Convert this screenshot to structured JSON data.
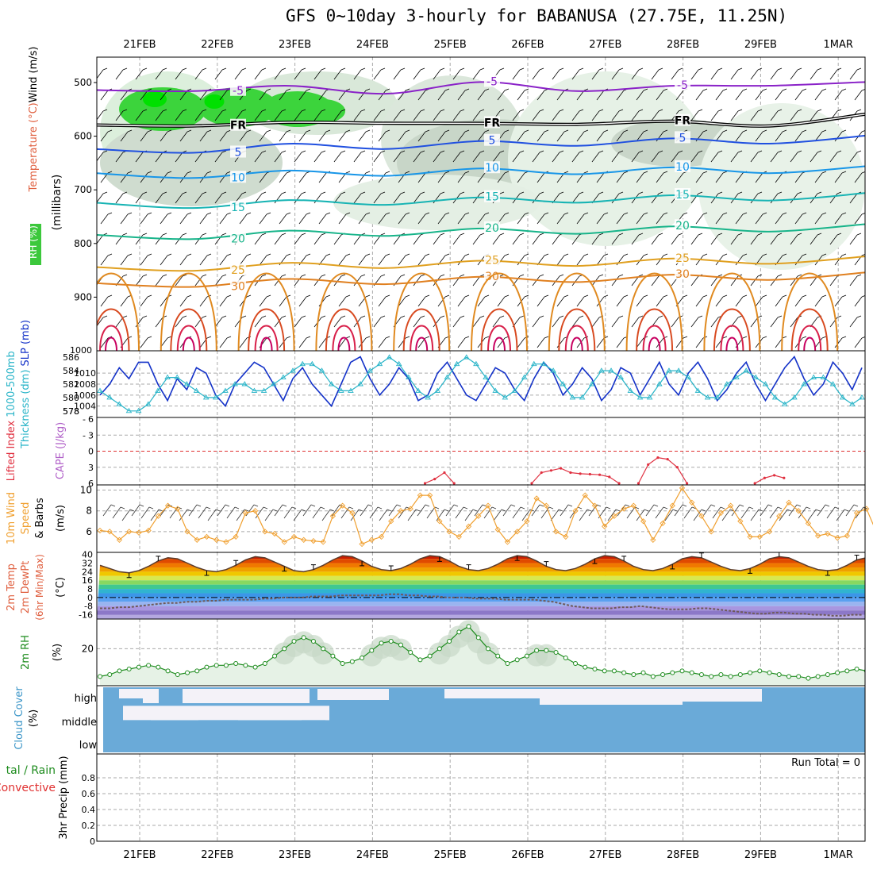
{
  "title": "GFS 0~10day 3-hourly for BABANUSA (27.75E, 11.25N)",
  "date_labels": [
    "21FEB",
    "22FEB",
    "23FEB",
    "24FEB",
    "25FEB",
    "26FEB",
    "27FEB",
    "28FEB",
    "29FEB",
    "1MAR"
  ],
  "panel_labels": {
    "upper_rh": "RH (%)",
    "upper_temp": "Temperature",
    "upper_temp_unit": "(°C)",
    "upper_wind": "Wind (m/s)",
    "upper_units": "(millibars)",
    "thick_a": "1000-500mb",
    "thick_b": "Thickness (dm)",
    "slp": "SLP (mb)",
    "li": "Lifted Index",
    "cape": "CAPE (J/kg)",
    "wind_a": "10m Wind",
    "wind_b": "Speed",
    "wind_c": "& Barbs",
    "wind_unit": "(m/s)",
    "temp_a": "2m Temp",
    "temp_b": "2m DewPt",
    "temp_c": "(6hr Min/Max)",
    "temp_unit": "(°C)",
    "rh_a": "2m RH",
    "rh_unit": "(%)",
    "cloud_a": "Cloud Cover",
    "cloud_unit": "(%)",
    "cloud_high": "high",
    "cloud_middle": "middle",
    "cloud_low": "low",
    "precip_a": "tal / Rain",
    "precip_b": "Convective",
    "precip_c": "3hr Precip (mm)",
    "run_total": "Run Total = 0"
  },
  "chart_data": [
    {
      "type": "heatmap",
      "name": "upper-air cross section",
      "y_ticks": [
        500,
        600,
        700,
        800,
        900
      ],
      "y_top_label": "1000",
      "isotherms": [
        {
          "label": "-5",
          "values_mb": [
            520,
            510,
            512,
            515,
            505,
            510,
            512,
            500,
            505
          ]
        },
        {
          "label": "FR",
          "values_mb": [
            585,
            575,
            580,
            570,
            582,
            572,
            578,
            575,
            565
          ]
        },
        {
          "label": "5",
          "values_mb": [
            630,
            625,
            620,
            618,
            615,
            612,
            610,
            608,
            605
          ]
        },
        {
          "label": "10",
          "values_mb": [
            675,
            672,
            670,
            668,
            666,
            665,
            664,
            663,
            662
          ]
        },
        {
          "label": "15",
          "values_mb": [
            730,
            728,
            725,
            722,
            720,
            718,
            716,
            714,
            712
          ]
        },
        {
          "label": "20",
          "values_mb": [
            790,
            786,
            782,
            780,
            778,
            776,
            774,
            772,
            770
          ]
        },
        {
          "label": "25",
          "values_mb": [
            850,
            845,
            842,
            840,
            838,
            836,
            834,
            832,
            830
          ]
        },
        {
          "label": "30",
          "values_mb": [
            880,
            875,
            872,
            870,
            868,
            866,
            864,
            862,
            860
          ]
        }
      ]
    },
    {
      "type": "line",
      "name": "thickness and SLP",
      "y_ticks_left": [
        578,
        580,
        582,
        584,
        586
      ],
      "y_ticks_right": [
        1004,
        1006,
        1008,
        1010
      ],
      "slp": [
        1006,
        1008,
        1011,
        1009,
        1012,
        1012,
        1008,
        1005,
        1009,
        1007,
        1011,
        1010,
        1006,
        1004,
        1008,
        1010,
        1012,
        1011,
        1008,
        1005,
        1009,
        1011,
        1008,
        1006,
        1004,
        1008,
        1012,
        1013,
        1009,
        1006,
        1008,
        1011,
        1009,
        1005,
        1006,
        1010,
        1012,
        1009,
        1006,
        1005,
        1008,
        1011,
        1010,
        1007,
        1005,
        1009,
        1012,
        1010,
        1006,
        1008,
        1011,
        1009,
        1005,
        1007,
        1011,
        1010,
        1006,
        1009,
        1012,
        1008,
        1006,
        1010,
        1012,
        1009,
        1005,
        1007,
        1010,
        1012,
        1008,
        1005,
        1008,
        1011,
        1013,
        1009,
        1006,
        1008,
        1012,
        1010,
        1007,
        1011
      ],
      "thickness": [
        581,
        580,
        579,
        578,
        578,
        579,
        581,
        583,
        583,
        582,
        581,
        580,
        580,
        581,
        582,
        582,
        581,
        581,
        582,
        583,
        584,
        585,
        585,
        584,
        582,
        581,
        581,
        582,
        584,
        585,
        586,
        585,
        583,
        581,
        580,
        581,
        583,
        585,
        586,
        585,
        583,
        581,
        580,
        581,
        583,
        585,
        585,
        584,
        582,
        580,
        580,
        582,
        584,
        584,
        583,
        581,
        580,
        580,
        582,
        584,
        584,
        583,
        581,
        580,
        580,
        582,
        583,
        584,
        583,
        582,
        580,
        579,
        580,
        582,
        583,
        583,
        582,
        580,
        579,
        580
      ]
    },
    {
      "type": "line",
      "name": "lifted index and CAPE",
      "y_ticks": [
        -3,
        0,
        3,
        6
      ],
      "extra_ticks": [
        "6",
        "3",
        "0",
        "3",
        "6"
      ],
      "zero_line": 0,
      "lifted_index_segments": [
        {
          "x_start": 29,
          "values": [
            6.0,
            5.2,
            4.0,
            6.0
          ]
        },
        {
          "x_start": 40,
          "values": [
            6.0,
            4.0,
            3.6,
            3.2,
            4.0,
            4.2,
            4.3,
            4.4,
            4.8,
            6.0
          ]
        },
        {
          "x_start": 51,
          "values": [
            6.0,
            2.5,
            1.2,
            1.5,
            3.0,
            6.0
          ]
        },
        {
          "x_start": 63,
          "values": [
            6.0,
            5.0,
            4.5,
            5.0
          ]
        }
      ]
    },
    {
      "type": "line",
      "name": "10m wind speed",
      "y_ticks": [
        6,
        8,
        10
      ],
      "ylim": [
        4,
        10.5
      ],
      "values": [
        6.1,
        6.0,
        5.2,
        6.0,
        5.9,
        6.1,
        7.5,
        8.5,
        8.2,
        6.0,
        5.2,
        5.5,
        5.2,
        5.0,
        5.5,
        7.8,
        8.0,
        6.0,
        5.8,
        5.0,
        5.5,
        5.2,
        5.1,
        5.0,
        7.5,
        8.5,
        7.8,
        4.8,
        5.2,
        5.5,
        7.0,
        8.0,
        8.2,
        9.5,
        9.5,
        7.0,
        6.0,
        5.5,
        6.5,
        7.5,
        8.5,
        6.2,
        5.0,
        6.0,
        7.0,
        9.2,
        8.5,
        6.0,
        5.5,
        8.0,
        9.5,
        8.5,
        6.5,
        7.5,
        8.2,
        8.5,
        7.0,
        5.2,
        6.8,
        8.5,
        10.2,
        8.8,
        7.5,
        6.0,
        7.8,
        8.5,
        7.0,
        5.5,
        5.5,
        6.0,
        7.5,
        8.8,
        8.0,
        6.8,
        5.6,
        5.8,
        5.4,
        5.6,
        7.8,
        8.2,
        6.0,
        5.5,
        6.5,
        7.5,
        8.2,
        8.0,
        5.2,
        5.5,
        5.8,
        7.0
      ]
    },
    {
      "type": "area",
      "name": "2m temperature and dewpoint",
      "y_ticks": [
        40,
        32,
        24,
        16,
        8,
        0,
        -8,
        -16
      ],
      "ylim": [
        -20,
        42
      ],
      "temperature": [
        30,
        27,
        24,
        23,
        25,
        29,
        34,
        37,
        36,
        32,
        28,
        25,
        24,
        26,
        30,
        35,
        38,
        37,
        33,
        29,
        25,
        24,
        26,
        30,
        35,
        39,
        38,
        34,
        29,
        26,
        25,
        27,
        31,
        36,
        39,
        38,
        34,
        29,
        26,
        25,
        27,
        31,
        36,
        39,
        38,
        34,
        29,
        26,
        25,
        27,
        31,
        36,
        39,
        38,
        34,
        29,
        26,
        25,
        27,
        31,
        36,
        38,
        37,
        33,
        29,
        26,
        25,
        27,
        31,
        36,
        38,
        37,
        33,
        29,
        26,
        25,
        26,
        30,
        35,
        37,
        36,
        32,
        28,
        25,
        24,
        23,
        24,
        25,
        24,
        25
      ],
      "dewpoint": [
        -10,
        -10,
        -9,
        -9,
        -8,
        -7,
        -6,
        -5,
        -5,
        -4,
        -4,
        -3,
        -3,
        -2,
        -2,
        -2,
        -2,
        -1,
        -1,
        0,
        0,
        0,
        1,
        1,
        1,
        2,
        2,
        2,
        2,
        2,
        3,
        3,
        2,
        2,
        1,
        1,
        0,
        0,
        0,
        -1,
        -1,
        -1,
        -2,
        -2,
        -2,
        -2,
        -3,
        -4,
        -6,
        -8,
        -9,
        -10,
        -10,
        -10,
        -9,
        -9,
        -8,
        -9,
        -10,
        -11,
        -11,
        -11,
        -10,
        -10,
        -11,
        -12,
        -13,
        -14,
        -15,
        -15,
        -14,
        -14,
        -15,
        -15,
        -16,
        -16,
        -17,
        -17,
        -16,
        -16
      ]
    },
    {
      "type": "line",
      "name": "2m relative humidity",
      "y_ticks": [
        20
      ],
      "ylim": [
        0,
        36
      ],
      "values": [
        5,
        6,
        8,
        9,
        10,
        11,
        10,
        8,
        6,
        7,
        8,
        10,
        11,
        11,
        12,
        11,
        10,
        12,
        16,
        20,
        24,
        26,
        24,
        20,
        16,
        12,
        13,
        15,
        19,
        23,
        24,
        22,
        18,
        14,
        16,
        20,
        24,
        29,
        32,
        26,
        20,
        16,
        12,
        14,
        16,
        19,
        19,
        18,
        15,
        12,
        10,
        9,
        8,
        8,
        7,
        6,
        7,
        5,
        6,
        7,
        8,
        7,
        6,
        5,
        6,
        5,
        6,
        7,
        8,
        7,
        6,
        5,
        5,
        4,
        5,
        6,
        7,
        8,
        9,
        8,
        5,
        4,
        5,
        6,
        6,
        7,
        6,
        5,
        6,
        5
      ]
    },
    {
      "type": "heatmap",
      "name": "cloud cover",
      "rows": [
        "high",
        "middle",
        "low"
      ]
    },
    {
      "type": "bar",
      "name": "3hr precipitation",
      "y_ticks": [
        0,
        0.2,
        0.4,
        0.6,
        0.8
      ],
      "ylim": [
        0,
        1
      ],
      "values": []
    }
  ]
}
